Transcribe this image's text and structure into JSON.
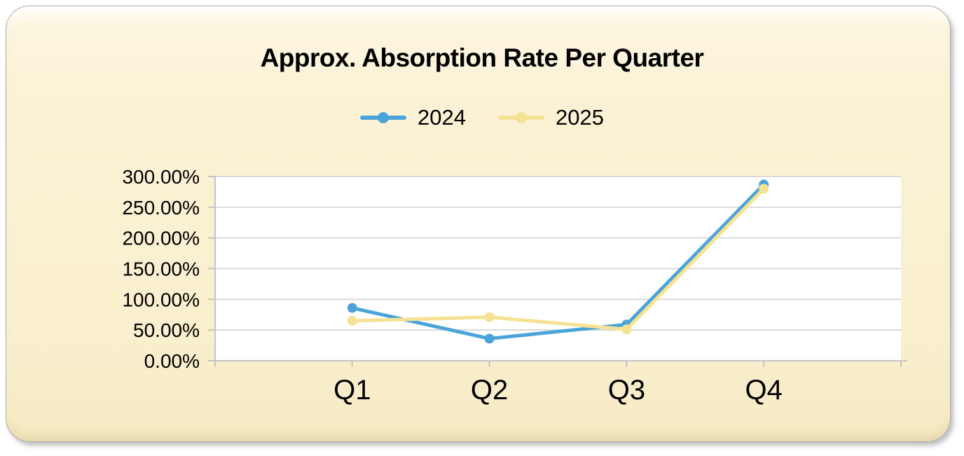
{
  "card": {
    "background_color": "#FBF2D6",
    "highlight_color": "#FFFEF5",
    "border_color": "#ABABAB"
  },
  "chart_data": {
    "type": "line",
    "title": "Approx. Absorption Rate Per Quarter",
    "categories": [
      "Q1",
      "Q2",
      "Q3",
      "Q4"
    ],
    "series": [
      {
        "name": "2024",
        "color": "#4AA4D9",
        "values": [
          86,
          36,
          59,
          287
        ]
      },
      {
        "name": "2025",
        "color": "#F6E294",
        "values": [
          65,
          71,
          51,
          280
        ]
      }
    ],
    "unit": "%",
    "xlabel": "",
    "ylabel": "",
    "ylim": [
      0,
      300
    ],
    "ytick_step": 50,
    "ytick_labels": [
      "0.00%",
      "50.00%",
      "100.00%",
      "150.00%",
      "200.00%",
      "250.00%",
      "300.00%"
    ],
    "legend_position": "top",
    "grid": "horizontal",
    "plot_background": "#FFFFFF",
    "gridline_color": "#D9D9D9",
    "axis_color": "#C3C3C3",
    "marker": "circle",
    "line_width": 5,
    "marker_radius": 7
  }
}
